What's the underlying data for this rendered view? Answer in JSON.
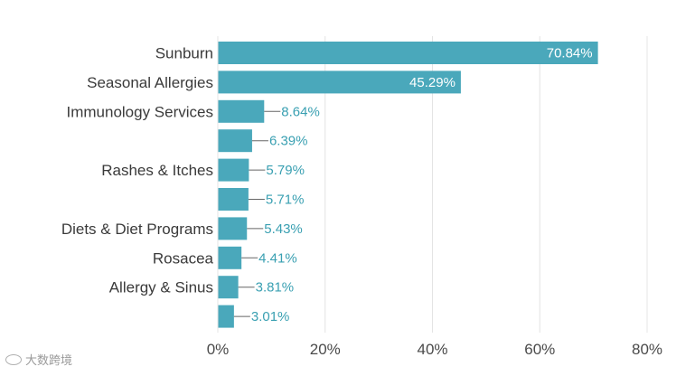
{
  "chart_data": {
    "type": "bar",
    "orientation": "horizontal",
    "title": "",
    "xlabel": "",
    "ylabel": "",
    "xlim": [
      0,
      80
    ],
    "x_ticks": [
      "0%",
      "20%",
      "40%",
      "60%",
      "80%"
    ],
    "x_tick_values": [
      0,
      20,
      40,
      60,
      80
    ],
    "categories": [
      "Sunburn",
      "Seasonal Allergies",
      "Immunology Services",
      "",
      "Rashes & Itches",
      "",
      "Diets & Diet Programs",
      "Rosacea",
      "Allergy & Sinus",
      ""
    ],
    "values": [
      70.84,
      45.29,
      8.64,
      6.39,
      5.79,
      5.71,
      5.43,
      4.41,
      3.81,
      3.01
    ],
    "value_labels": [
      "70.84%",
      "45.29%",
      "8.64%",
      "6.39%",
      "5.79%",
      "5.71%",
      "5.43%",
      "4.41%",
      "3.81%",
      "3.01%"
    ],
    "bar_color": "#4aa8bb",
    "label_color": "#3aa0b2",
    "grid": true
  },
  "watermark": {
    "text": "大数跨境"
  }
}
